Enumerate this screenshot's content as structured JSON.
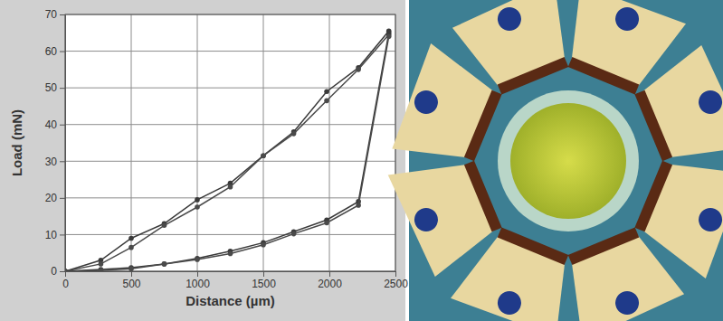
{
  "chart_data": {
    "type": "line",
    "x_label": "Distance (µm)",
    "y_label": "Load (mN)",
    "x": [
      0,
      270,
      500,
      750,
      1000,
      1250,
      1500,
      1730,
      1980,
      2220,
      2450
    ],
    "series": [
      {
        "color": "#3a3a3a",
        "values": [
          0,
          3,
          9,
          13,
          19.5,
          24,
          31.5,
          38,
          49,
          55.5,
          65.5
        ]
      },
      {
        "color": "#4a4a4a",
        "values": [
          0,
          2,
          6.5,
          12.5,
          17.5,
          23,
          31.5,
          37.5,
          46.5,
          55,
          64.5
        ]
      },
      {
        "color": "#3a3a3a",
        "values": [
          0,
          0.5,
          1,
          2,
          3.5,
          5.5,
          7.8,
          10.8,
          14,
          19,
          65
        ]
      },
      {
        "color": "#4a4a4a",
        "values": [
          0,
          0.2,
          0.7,
          2,
          3.2,
          4.8,
          7.2,
          10.2,
          13.2,
          18,
          64
        ]
      }
    ],
    "xlim": [
      0,
      2500
    ],
    "xticks": [
      0,
      500,
      1000,
      1500,
      2000,
      2500
    ],
    "ylim": [
      0,
      70
    ],
    "yticks": [
      0,
      10,
      20,
      30,
      40,
      50,
      60,
      70
    ],
    "grid": true,
    "marker": "circle",
    "line_style": "solid"
  }
}
